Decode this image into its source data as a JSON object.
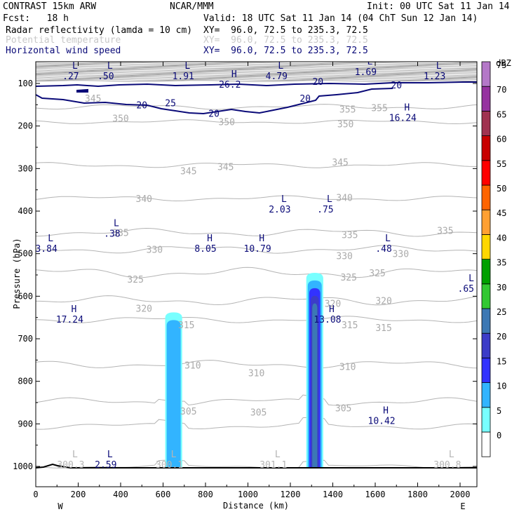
{
  "header": {
    "model": "CONTRAST 15km ARW",
    "center": "NCAR/MMM",
    "init": "Init: 00 UTC Sat 11 Jan 14",
    "fcst": "Fcst:   18 h",
    "valid": "Valid: 18 UTC Sat 11 Jan 14 (04 ChT Sun 12 Jan 14)",
    "fields": [
      {
        "name": "Radar reflectivity (lamda = 10 cm)",
        "xy": "XY=  96.0, 72.5 to 235.3, 72.5",
        "color": "#000000"
      },
      {
        "name": "Potential temperature",
        "xy": "XY=  96.0, 72.5 to 235.3, 72.5",
        "color": "#c8c8c8"
      },
      {
        "name": "Horizontal wind speed",
        "xy": "XY=  96.0, 72.5 to 235.3, 72.5",
        "color": "#0a0a78"
      }
    ]
  },
  "chart_data": {
    "type": "cross-section",
    "xlabel": "Distance (km)",
    "ylabel": "Pressure (hPa)",
    "x_ticks": [
      0,
      200,
      400,
      600,
      800,
      1000,
      1200,
      1400,
      1600,
      1800,
      2000
    ],
    "y_ticks": [
      100,
      200,
      300,
      400,
      500,
      600,
      700,
      800,
      900,
      1000
    ],
    "xlim": [
      0,
      2080
    ],
    "direction_labels": {
      "left": "W",
      "right": "E"
    },
    "colorbar": {
      "unit": "dBZ",
      "levels": [
        0,
        5,
        10,
        15,
        20,
        25,
        30,
        35,
        40,
        45,
        50,
        55,
        60,
        65,
        70,
        75
      ],
      "colors": [
        "#ffffff",
        "#78ffff",
        "#32b4ff",
        "#3232ff",
        "#3c3cc8",
        "#3c78b4",
        "#32c832",
        "#00a000",
        "#ffd700",
        "#ffa032",
        "#ff6400",
        "#ff0000",
        "#c80000",
        "#a03250",
        "#9632a0",
        "#b478c8"
      ]
    },
    "theta_labels": [
      {
        "x": 270,
        "p": 135,
        "text": "345"
      },
      {
        "x": 1620,
        "p": 157,
        "text": "355"
      },
      {
        "x": 1470,
        "p": 160,
        "text": "355"
      },
      {
        "x": 400,
        "p": 182,
        "text": "350"
      },
      {
        "x": 900,
        "p": 190,
        "text": "350"
      },
      {
        "x": 1460,
        "p": 195,
        "text": "350"
      },
      {
        "x": 720,
        "p": 305,
        "text": "345"
      },
      {
        "x": 895,
        "p": 295,
        "text": "345"
      },
      {
        "x": 1435,
        "p": 285,
        "text": "345"
      },
      {
        "x": 510,
        "p": 370,
        "text": "340"
      },
      {
        "x": 1455,
        "p": 368,
        "text": "340"
      },
      {
        "x": 400,
        "p": 450,
        "text": "335"
      },
      {
        "x": 1480,
        "p": 455,
        "text": "335"
      },
      {
        "x": 1930,
        "p": 445,
        "text": "335"
      },
      {
        "x": 560,
        "p": 490,
        "text": "330"
      },
      {
        "x": 1455,
        "p": 505,
        "text": "330"
      },
      {
        "x": 1720,
        "p": 500,
        "text": "330"
      },
      {
        "x": 470,
        "p": 560,
        "text": "325"
      },
      {
        "x": 1475,
        "p": 555,
        "text": "325"
      },
      {
        "x": 1610,
        "p": 545,
        "text": "325"
      },
      {
        "x": 510,
        "p": 628,
        "text": "320"
      },
      {
        "x": 1400,
        "p": 617,
        "text": "320"
      },
      {
        "x": 1640,
        "p": 610,
        "text": "320"
      },
      {
        "x": 710,
        "p": 667,
        "text": "315"
      },
      {
        "x": 1480,
        "p": 667,
        "text": "315"
      },
      {
        "x": 1640,
        "p": 674,
        "text": "315"
      },
      {
        "x": 740,
        "p": 762,
        "text": "310"
      },
      {
        "x": 1040,
        "p": 780,
        "text": "310"
      },
      {
        "x": 1470,
        "p": 765,
        "text": "310"
      },
      {
        "x": 720,
        "p": 870,
        "text": "305"
      },
      {
        "x": 1050,
        "p": 872,
        "text": "305"
      },
      {
        "x": 1450,
        "p": 862,
        "text": "305"
      }
    ],
    "wind_labels": [
      {
        "x": 635,
        "p": 145,
        "text": "25"
      },
      {
        "x": 500,
        "p": 150,
        "text": "20"
      },
      {
        "x": 840,
        "p": 170,
        "text": "20"
      },
      {
        "x": 1270,
        "p": 135,
        "text": "20"
      },
      {
        "x": 1330,
        "p": 95,
        "text": "20"
      },
      {
        "x": 1700,
        "p": 103,
        "text": "20"
      }
    ],
    "extrema": [
      {
        "type": "L",
        "x": 165,
        "p": 80,
        "value": ".27",
        "color": "navy"
      },
      {
        "type": "L",
        "x": 330,
        "p": 80,
        "value": ".50",
        "color": "navy"
      },
      {
        "type": "L",
        "x": 695,
        "p": 80,
        "value": "1.91",
        "color": "navy"
      },
      {
        "type": "H",
        "x": 915,
        "p": 100,
        "value": "26.2",
        "color": "navy"
      },
      {
        "type": "L",
        "x": 1135,
        "p": 80,
        "value": "4.79",
        "color": "navy"
      },
      {
        "type": "L",
        "x": 1555,
        "p": 70,
        "value": "1.69",
        "color": "navy"
      },
      {
        "type": "L",
        "x": 1880,
        "p": 80,
        "value": "1.23",
        "color": "navy"
      },
      {
        "type": "H",
        "x": 1730,
        "p": 178,
        "value": "16.24",
        "color": "navy"
      },
      {
        "type": "L",
        "x": 1150,
        "p": 393,
        "value": "2.03",
        "color": "navy"
      },
      {
        "type": "L",
        "x": 1365,
        "p": 393,
        "value": ".75",
        "color": "navy"
      },
      {
        "type": "L",
        "x": 360,
        "p": 450,
        "value": ".38",
        "color": "navy"
      },
      {
        "type": "L",
        "x": 50,
        "p": 486,
        "value": "3.84",
        "color": "navy"
      },
      {
        "type": "H",
        "x": 800,
        "p": 486,
        "value": "8.05",
        "color": "navy"
      },
      {
        "type": "H",
        "x": 1045,
        "p": 486,
        "value": "10.79",
        "color": "navy"
      },
      {
        "type": "L",
        "x": 1640,
        "p": 486,
        "value": ".48",
        "color": "navy"
      },
      {
        "type": "L",
        "x": 2080,
        "p": 580,
        "value": ".65",
        "color": "navy"
      },
      {
        "type": "H",
        "x": 160,
        "p": 652,
        "value": "17.24",
        "color": "navy"
      },
      {
        "type": "H",
        "x": 1375,
        "p": 652,
        "value": "13.08",
        "color": "navy"
      },
      {
        "type": "H",
        "x": 1630,
        "p": 890,
        "value": "10.42",
        "color": "navy"
      },
      {
        "type": "L",
        "x": 165,
        "p": 993,
        "value": "300.3",
        "color": "grey"
      },
      {
        "type": "L",
        "x": 330,
        "p": 993,
        "value": "2.59",
        "color": "navy"
      },
      {
        "type": "L",
        "x": 630,
        "p": 993,
        "value": "300.1",
        "color": "grey"
      },
      {
        "type": "L",
        "x": 1120,
        "p": 993,
        "value": "301.1",
        "color": "grey"
      },
      {
        "type": "L",
        "x": 1940,
        "p": 993,
        "value": "300.8",
        "color": "grey"
      }
    ],
    "reflectivity_cells": [
      {
        "x_center": 650,
        "top_p": 638,
        "bottom_p": 1000,
        "max_dbz": 10
      },
      {
        "x_center": 1315,
        "top_p": 545,
        "bottom_p": 1000,
        "max_dbz": 25
      }
    ]
  }
}
